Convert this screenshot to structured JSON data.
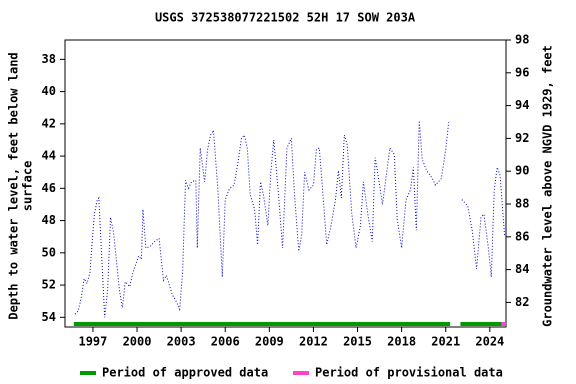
{
  "chart_data": {
    "type": "line",
    "title": "USGS 372538077221502 52H 17 SOW 203A",
    "ylabel": [
      "Depth to water level, feet below land",
      "surface"
    ],
    "y2label": "Groundwater level above NGVD 1929, feet",
    "xlim": [
      1995.1,
      2025.1
    ],
    "xticks": [
      1997,
      2000,
      2003,
      2006,
      2009,
      2012,
      2015,
      2018,
      2021,
      2024
    ],
    "ylim": [
      36.8,
      54.6
    ],
    "y_inverted": true,
    "yticks": [
      38,
      40,
      42,
      44,
      46,
      48,
      50,
      52,
      54
    ],
    "y2lim": [
      80.5,
      98
    ],
    "y2ticks": [
      82,
      84,
      86,
      88,
      90,
      92,
      94,
      96,
      98
    ],
    "series": [
      {
        "color": "#0000cc",
        "x": [
          1995.78,
          1996.0,
          1996.2,
          1996.4,
          1996.6,
          1996.8,
          1996.9,
          1997.1,
          1997.3,
          1997.4,
          1997.6,
          1997.8,
          1998.0,
          1998.2,
          1998.4,
          1998.8,
          1999.0,
          1999.2,
          1999.5,
          1999.7,
          2000.1,
          2000.3,
          2000.4,
          2000.6,
          2000.9,
          2001.2,
          2001.5,
          2001.8,
          2002.0,
          2002.4,
          2002.6,
          2002.9,
          2003.1,
          2003.3,
          2003.5,
          2003.7,
          2004.0,
          2004.1,
          2004.3,
          2004.6,
          2004.8,
          2005.0,
          2005.2,
          2005.5,
          2005.8,
          2006.0,
          2006.3,
          2006.6,
          2006.9,
          2007.1,
          2007.3,
          2007.5,
          2007.7,
          2008.0,
          2008.2,
          2008.4,
          2008.6,
          2008.9,
          2009.1,
          2009.3,
          2009.6,
          2009.9,
          2010.2,
          2010.5,
          2010.7,
          2011.0,
          2011.2,
          2011.4,
          2011.7,
          2012.0,
          2012.2,
          2012.4,
          2012.7,
          2012.9,
          2013.2,
          2013.5,
          2013.7,
          2013.9,
          2014.1,
          2014.3,
          2014.6,
          2014.9,
          2015.2,
          2015.4,
          2015.7,
          2016.0,
          2016.2,
          2016.4,
          2016.7,
          2017.0,
          2017.2,
          2017.5,
          2017.7,
          2018.0,
          2018.3,
          2018.6,
          2018.8,
          2019.0,
          2019.2,
          2019.4,
          2019.7,
          2020.1,
          2020.3,
          2020.7,
          2021.0,
          2021.2,
          2021.6,
          2022.1,
          2022.5,
          2022.8,
          2023.1,
          2023.4,
          2023.6,
          2023.9,
          2024.1,
          2024.3,
          2024.5,
          2024.7,
          2025.0
        ],
        "values": [
          53.8,
          53.6,
          52.8,
          51.6,
          51.9,
          51.2,
          49.9,
          47.6,
          46.7,
          46.6,
          50.3,
          54.0,
          52.3,
          47.8,
          48.7,
          52.3,
          53.4,
          51.8,
          52.1,
          51.3,
          50.2,
          50.4,
          47.3,
          49.7,
          49.6,
          49.3,
          49.1,
          51.7,
          51.4,
          52.6,
          52.9,
          53.5,
          51.2,
          45.5,
          46.0,
          45.6,
          45.5,
          49.7,
          43.5,
          45.6,
          43.6,
          42.7,
          42.4,
          46.1,
          51.5,
          46.7,
          46.0,
          45.8,
          44.2,
          42.9,
          42.7,
          43.5,
          46.4,
          47.3,
          49.5,
          45.6,
          46.4,
          48.3,
          45.0,
          43.0,
          46.1,
          49.7,
          43.5,
          42.9,
          46.2,
          49.9,
          48.9,
          45.0,
          46.1,
          45.8,
          43.6,
          43.5,
          47.0,
          49.5,
          48.3,
          46.7,
          44.9,
          46.6,
          42.7,
          43.3,
          47.5,
          49.7,
          48.3,
          45.6,
          47.6,
          49.3,
          44.1,
          45.2,
          47.0,
          44.9,
          43.5,
          43.9,
          47.9,
          49.7,
          46.7,
          46.1,
          44.7,
          48.6,
          41.8,
          44.2,
          44.9,
          45.4,
          45.8,
          45.4,
          43.6,
          41.9,
          null,
          46.7,
          47.1,
          48.6,
          51.0,
          47.8,
          47.6,
          49.7,
          51.5,
          46.1,
          44.7,
          45.2,
          48.9
        ]
      }
    ],
    "periods": [
      {
        "name": "Period of approved data",
        "color": "#009900",
        "spans": [
          [
            1995.7,
            2021.3
          ],
          [
            2022.0,
            2024.8
          ]
        ]
      },
      {
        "name": "Period of provisional data",
        "color": "#ff44cc",
        "spans": [
          [
            2024.8,
            2025.1
          ]
        ]
      }
    ]
  }
}
